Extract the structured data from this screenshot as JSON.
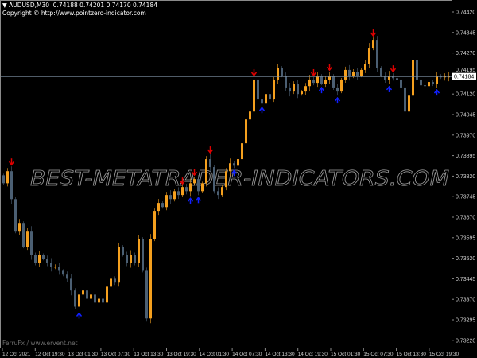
{
  "header": {
    "symbol": "AUDUSD,M30",
    "ohlc": "0.74188 0.74201 0.74170 0.74184",
    "copyright": "Copyright © http://www.pointzero-indicator.com"
  },
  "footer": {
    "credit": "FerruFx / www.ervent.net"
  },
  "watermark": "BEST-METATRADER-INDICATORS.COM",
  "colors": {
    "background": "#000000",
    "bull": "#f5a01e",
    "bear": "#4b5f73",
    "sell_arrow": "#e00000",
    "buy_arrow": "#1020ff",
    "grid_frame": "#8a8a8a",
    "price_line": "#7f93a6"
  },
  "chart_data": {
    "type": "candlestick",
    "symbol": "AUDUSD",
    "timeframe": "M30",
    "ylim": [
      0.7319,
      0.7446
    ],
    "y_ticks": [
      "0.74420",
      "0.74345",
      "0.74270",
      "0.74195",
      "0.74120",
      "0.74045",
      "0.73970",
      "0.73895",
      "0.73820",
      "0.73745",
      "0.73670",
      "0.73595",
      "0.73520",
      "0.73445",
      "0.73370",
      "0.73295",
      "0.73220"
    ],
    "x_ticks": [
      "12 Oct 2021",
      "12 Oct 19:30",
      "13 Oct 01:30",
      "13 Oct 07:30",
      "13 Oct 13:30",
      "13 Oct 19:30",
      "14 Oct 01:30",
      "14 Oct 07:30",
      "14 Oct 13:30",
      "14 Oct 19:30",
      "15 Oct 01:30",
      "15 Oct 07:30",
      "15 Oct 13:30",
      "15 Oct 19:30"
    ],
    "current_price": "0.74184",
    "first_open": 0.73823,
    "close": [
      0.73794,
      0.73838,
      0.73736,
      0.7362,
      0.73649,
      0.73562,
      0.7362,
      0.73532,
      0.73503,
      0.73532,
      0.73518,
      0.73503,
      0.73489,
      0.73489,
      0.73474,
      0.7346,
      0.73445,
      0.73402,
      0.73343,
      0.73387,
      0.73402,
      0.73372,
      0.73387,
      0.73358,
      0.73372,
      0.73358,
      0.73416,
      0.73445,
      0.73431,
      0.73562,
      0.73532,
      0.73503,
      0.73532,
      0.73503,
      0.73591,
      0.73474,
      0.733,
      0.73591,
      0.73693,
      0.73722,
      0.73707,
      0.73751,
      0.73736,
      0.73765,
      0.73751,
      0.7378,
      0.73765,
      0.73794,
      0.73809,
      0.73765,
      0.73794,
      0.73882,
      0.73853,
      0.73765,
      0.73751,
      0.7378,
      0.73838,
      0.73867,
      0.73858,
      0.73882,
      0.7394,
      0.74027,
      0.74056,
      0.74173,
      0.741,
      0.74085,
      0.7412,
      0.741,
      0.74173,
      0.74216,
      0.74187,
      0.74144,
      0.74129,
      0.74158,
      0.7412,
      0.74129,
      0.74149,
      0.74173,
      0.74161,
      0.74187,
      0.74158,
      0.74173,
      0.74184,
      0.74144,
      0.74129,
      0.74173,
      0.74208,
      0.74187,
      0.74202,
      0.74187,
      0.74208,
      0.74231,
      0.74289,
      0.74318,
      0.74216,
      0.74187,
      0.74173,
      0.74187,
      0.74178,
      0.74173,
      0.74144,
      0.74056,
      0.74114,
      0.74245,
      0.74173,
      0.74152,
      0.74149,
      0.74164,
      0.74158,
      0.74187,
      0.74181,
      0.74184,
      0.74184
    ],
    "sell_signal_bars": [
      2,
      45,
      48,
      52,
      63,
      78,
      82,
      93,
      98
    ],
    "buy_signal_bars": [
      19,
      47,
      49,
      58,
      65,
      80,
      84,
      97,
      109
    ]
  }
}
